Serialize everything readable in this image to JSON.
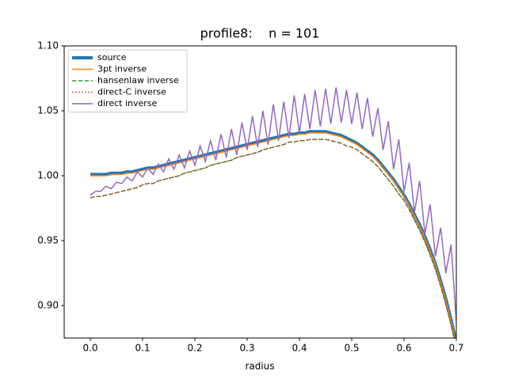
{
  "chart_data": {
    "type": "line",
    "title": "profile8:    n = 101",
    "xlabel": "radius",
    "xlim": [
      -0.05,
      0.7
    ],
    "ylim": [
      0.875,
      1.1
    ],
    "xticks": [
      {
        "value": 0,
        "label": "0.0"
      },
      0.1,
      0.2,
      0.3,
      0.4,
      0.5,
      0.6,
      0.7
    ],
    "yticks": [
      {
        "value": 0.9,
        "label": "0.90"
      },
      0.95,
      {
        "value": 1.0,
        "label": "1.00"
      },
      1.05,
      {
        "value": 1.1,
        "label": "1.10"
      }
    ],
    "legend": "upper left",
    "x": [
      0,
      0.01,
      0.02,
      0.03,
      0.04,
      0.05,
      0.06,
      0.07,
      0.08,
      0.09,
      0.1,
      0.11,
      0.12,
      0.13,
      0.14,
      0.15,
      0.16,
      0.17,
      0.18,
      0.19,
      0.2,
      0.21,
      0.22,
      0.23,
      0.24,
      0.25,
      0.26,
      0.27,
      0.28,
      0.29,
      0.3,
      0.31,
      0.32,
      0.33,
      0.34,
      0.35,
      0.36,
      0.37,
      0.38,
      0.39,
      0.4,
      0.41,
      0.42,
      0.43,
      0.44,
      0.45,
      0.46,
      0.47,
      0.48,
      0.49,
      0.5,
      0.51,
      0.52,
      0.53,
      0.54,
      0.55,
      0.56,
      0.57,
      0.58,
      0.59,
      0.6,
      0.61,
      0.62,
      0.63,
      0.64,
      0.65,
      0.66,
      0.67,
      0.68,
      0.69,
      0.7
    ],
    "series": [
      {
        "name": "source",
        "color": "#1f77b4",
        "linestyle": "solid",
        "values": [
          1.001,
          1.001,
          1.001,
          1.001,
          1.002,
          1.002,
          1.002,
          1.003,
          1.003,
          1.004,
          1.005,
          1.006,
          1.006,
          1.007,
          1.008,
          1.009,
          1.01,
          1.011,
          1.012,
          1.013,
          1.014,
          1.015,
          1.016,
          1.017,
          1.018,
          1.019,
          1.02,
          1.021,
          1.022,
          1.023,
          1.024,
          1.025,
          1.026,
          1.027,
          1.028,
          1.029,
          1.03,
          1.031,
          1.032,
          1.032,
          1.033,
          1.033,
          1.034,
          1.034,
          1.034,
          1.034,
          1.033,
          1.032,
          1.031,
          1.029,
          1.027,
          1.025,
          1.022,
          1.019,
          1.016,
          1.012,
          1.007,
          1.002,
          0.997,
          0.991,
          0.985,
          0.978,
          0.97,
          0.962,
          0.953,
          0.943,
          0.932,
          0.919,
          0.905,
          0.889,
          0.871
        ]
      },
      {
        "name": "3pt inverse",
        "color": "#ff7f0e",
        "linestyle": "solid",
        "values": [
          1.0,
          1.0,
          1.0,
          1.0,
          1.001,
          1.001,
          1.001,
          1.002,
          1.002,
          1.003,
          1.004,
          1.005,
          1.005,
          1.006,
          1.007,
          1.008,
          1.009,
          1.01,
          1.011,
          1.012,
          1.013,
          1.014,
          1.015,
          1.016,
          1.017,
          1.018,
          1.019,
          1.02,
          1.021,
          1.022,
          1.023,
          1.024,
          1.025,
          1.026,
          1.027,
          1.028,
          1.029,
          1.03,
          1.031,
          1.031,
          1.032,
          1.032,
          1.033,
          1.033,
          1.033,
          1.033,
          1.032,
          1.031,
          1.03,
          1.028,
          1.026,
          1.024,
          1.021,
          1.018,
          1.015,
          1.011,
          1.006,
          1.001,
          0.996,
          0.99,
          0.984,
          0.977,
          0.969,
          0.961,
          0.952,
          0.942,
          0.931,
          0.918,
          0.904,
          0.888,
          0.87
        ]
      },
      {
        "name": "hansenlaw inverse",
        "color": "#2ca02c",
        "linestyle": "dashed",
        "values": [
          0.983,
          0.984,
          0.984,
          0.985,
          0.986,
          0.987,
          0.988,
          0.989,
          0.99,
          0.991,
          0.993,
          0.994,
          0.994,
          0.996,
          0.997,
          0.998,
          0.999,
          1.0,
          1.002,
          1.003,
          1.004,
          1.005,
          1.006,
          1.008,
          1.009,
          1.01,
          1.011,
          1.012,
          1.014,
          1.015,
          1.016,
          1.017,
          1.018,
          1.02,
          1.021,
          1.022,
          1.023,
          1.024,
          1.026,
          1.026,
          1.027,
          1.027,
          1.028,
          1.028,
          1.028,
          1.028,
          1.027,
          1.026,
          1.025,
          1.023,
          1.022,
          1.02,
          1.017,
          1.014,
          1.011,
          1.007,
          1.002,
          0.997,
          0.992,
          0.986,
          0.981,
          0.974,
          0.966,
          0.958,
          0.949,
          0.939,
          0.928,
          0.915,
          0.901,
          0.885,
          0.868
        ]
      },
      {
        "name": "direct-C inverse",
        "color": "#d62728",
        "linestyle": "dotted",
        "values": [
          0.983,
          0.984,
          0.984,
          0.985,
          0.986,
          0.987,
          0.988,
          0.989,
          0.99,
          0.991,
          0.993,
          0.994,
          0.994,
          0.996,
          0.997,
          0.998,
          0.999,
          1.0,
          1.002,
          1.003,
          1.004,
          1.005,
          1.006,
          1.008,
          1.009,
          1.01,
          1.011,
          1.012,
          1.014,
          1.015,
          1.016,
          1.017,
          1.018,
          1.02,
          1.021,
          1.022,
          1.023,
          1.024,
          1.026,
          1.026,
          1.027,
          1.027,
          1.028,
          1.028,
          1.028,
          1.028,
          1.027,
          1.026,
          1.025,
          1.023,
          1.022,
          1.02,
          1.017,
          1.014,
          1.011,
          1.007,
          1.002,
          0.997,
          0.992,
          0.986,
          0.981,
          0.974,
          0.966,
          0.958,
          0.949,
          0.939,
          0.928,
          0.915,
          0.901,
          0.885,
          0.868
        ]
      },
      {
        "name": "direct inverse",
        "color": "#9467bd",
        "linestyle": "solid",
        "values": [
          0.985,
          0.988,
          0.988,
          0.992,
          0.99,
          0.995,
          0.994,
          0.999,
          0.996,
          1.003,
          0.999,
          1.006,
          1.001,
          1.009,
          1.003,
          1.013,
          1.005,
          1.016,
          1.006,
          1.019,
          1.008,
          1.023,
          1.011,
          1.027,
          1.012,
          1.032,
          1.014,
          1.036,
          1.016,
          1.041,
          1.02,
          1.046,
          1.022,
          1.05,
          1.024,
          1.055,
          1.027,
          1.057,
          1.029,
          1.062,
          1.033,
          1.063,
          1.036,
          1.066,
          1.038,
          1.067,
          1.04,
          1.068,
          1.041,
          1.066,
          1.04,
          1.064,
          1.036,
          1.06,
          1.03,
          1.052,
          1.02,
          1.042,
          1.005,
          1.028,
          0.988,
          1.01,
          0.972,
          0.996,
          0.955,
          0.978,
          0.938,
          0.96,
          0.925,
          0.947,
          0.888
        ]
      }
    ]
  }
}
